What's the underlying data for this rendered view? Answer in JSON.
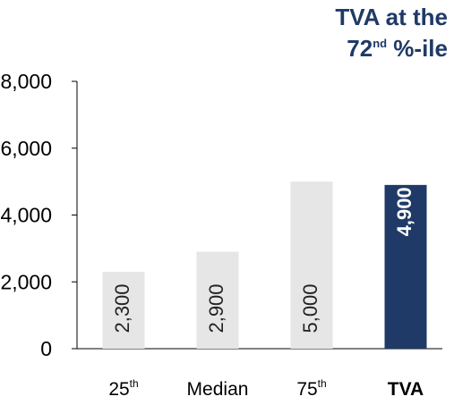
{
  "chart_data": {
    "type": "bar",
    "categories": [
      {
        "base": "25",
        "sup": "th"
      },
      {
        "base": "Median",
        "sup": ""
      },
      {
        "base": "75",
        "sup": "th"
      },
      {
        "base": "TVA",
        "sup": ""
      }
    ],
    "values": [
      2300,
      2900,
      5000,
      4900
    ],
    "value_labels": [
      "2,300",
      "2,900",
      "5,000",
      "4,900"
    ],
    "ylim": [
      0,
      8000
    ],
    "yticks": [
      0,
      2000,
      4000,
      6000,
      8000
    ],
    "ytick_labels": [
      "0",
      "2,000",
      "4,000",
      "6,000",
      "8,000"
    ],
    "title": "",
    "xlabel": "",
    "ylabel": "",
    "grid": false,
    "bar_colors": [
      "#e6e6e7",
      "#e6e6e7",
      "#e6e6e7",
      "#1f3a66"
    ],
    "label_colors": [
      "#222222",
      "#222222",
      "#222222",
      "#ffffff"
    ],
    "highlight_index": 3
  },
  "callout": {
    "line1": "TVA at the",
    "line2_base": "72",
    "line2_sup": "nd",
    "line2_rest": " %-ile"
  }
}
